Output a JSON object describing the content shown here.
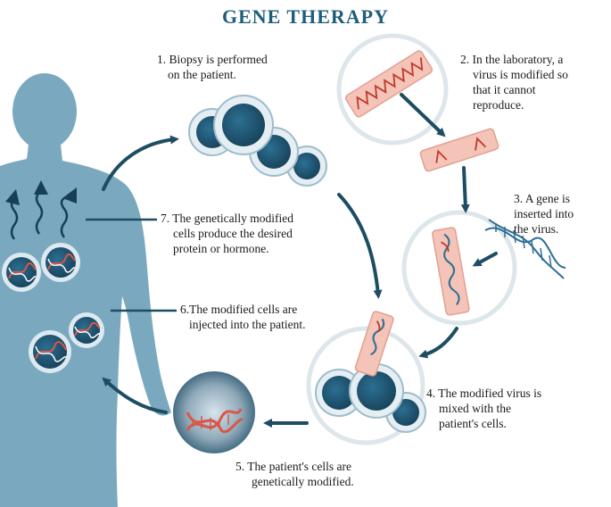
{
  "title": "GENE THERAPY",
  "steps": [
    {
      "lines": [
        "1. Biopsy is performed",
        "on the patient."
      ]
    },
    {
      "lines": [
        "2. In the laboratory, a",
        "virus is modified so",
        "that it cannot",
        "reproduce."
      ]
    },
    {
      "lines": [
        "3. A gene is",
        "inserted into",
        "the virus."
      ]
    },
    {
      "lines": [
        "4. The modified virus is",
        "mixed with the",
        "patient's cells."
      ]
    },
    {
      "lines": [
        "5. The patient's cells are",
        "genetically modified."
      ]
    },
    {
      "lines": [
        "6.The modified cells are",
        "injected into the patient."
      ]
    },
    {
      "lines": [
        "7. The genetically modified",
        "cells produce the desired",
        "protein or hormone."
      ]
    }
  ],
  "colors": {
    "title": "#1f5d7a",
    "body": "#7aa9bf",
    "cell_dark": "#1d4f6a",
    "arrow": "#1d4d63",
    "dna_red": "#d9574a",
    "dna_blue": "#2f6f93",
    "virus_fill": "#f4c4b8"
  }
}
